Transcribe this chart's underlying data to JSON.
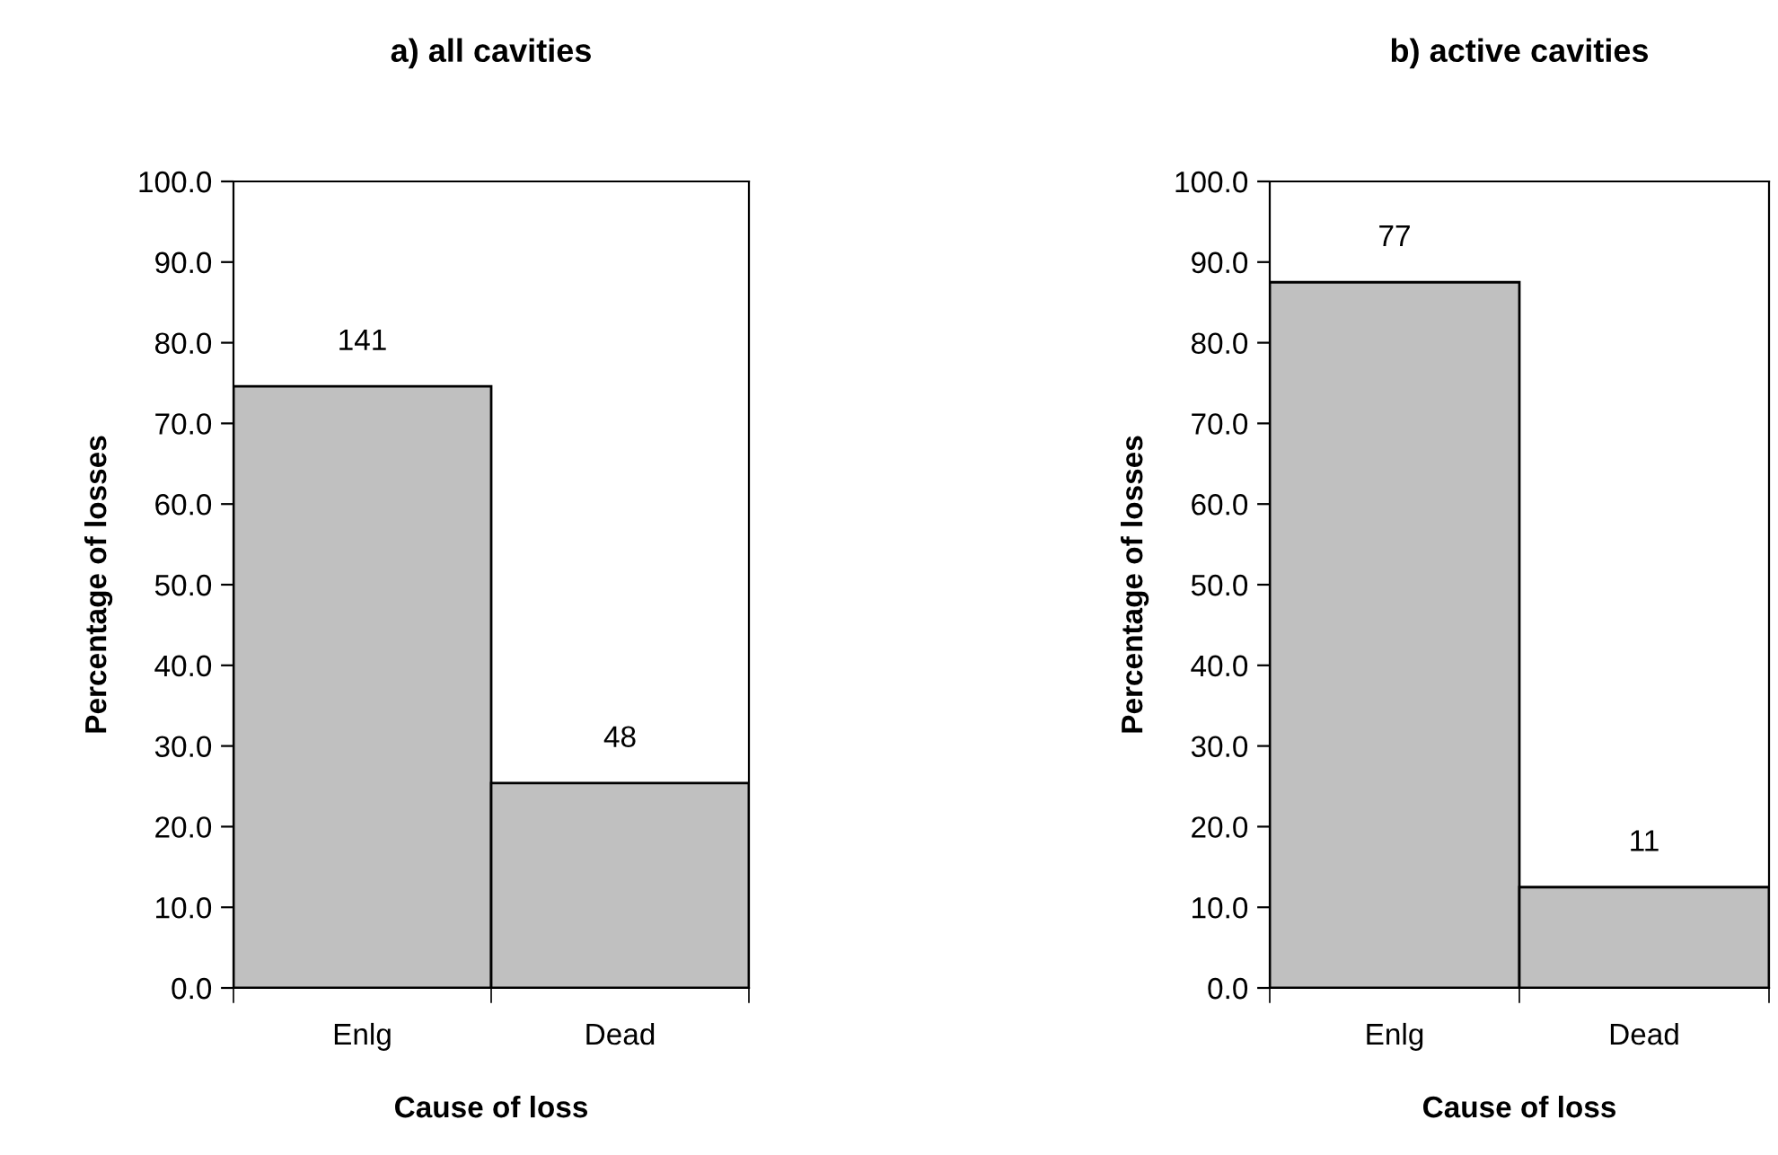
{
  "chart_data": [
    {
      "type": "bar",
      "title": "a) all cavities",
      "xlabel": "Cause of loss",
      "ylabel": "Percentage of losses",
      "categories": [
        "Enlg",
        "Dead"
      ],
      "values": [
        74.6,
        25.4
      ],
      "annotations": [
        {
          "text": "141",
          "x": "Enlg",
          "y": 74.6
        },
        {
          "text": "48",
          "x": "Dead",
          "y": 25.4
        }
      ],
      "color": "#c0c0c0",
      "ylim": [
        0,
        100
      ],
      "yticks": [
        {
          "value": 0,
          "label": "0.0"
        },
        {
          "value": 10,
          "label": "10.0"
        },
        {
          "value": 20,
          "label": "20.0"
        },
        {
          "value": 30,
          "label": "30.0"
        },
        {
          "value": 40,
          "label": "40.0"
        },
        {
          "value": 50,
          "label": "50.0"
        },
        {
          "value": 60,
          "label": "60.0"
        },
        {
          "value": 70,
          "label": "70.0"
        },
        {
          "value": 80,
          "label": "80.0"
        },
        {
          "value": 90,
          "label": "90.0"
        },
        {
          "value": 100,
          "label": "100.0"
        }
      ],
      "grid": false,
      "legend": false
    },
    {
      "type": "bar",
      "title": "b) active cavities",
      "xlabel": "Cause of loss",
      "ylabel": "Percentage of losses",
      "categories": [
        "Enlg",
        "Dead"
      ],
      "values": [
        87.5,
        12.5
      ],
      "annotations": [
        {
          "text": "77",
          "x": "Enlg",
          "y": 87.5
        },
        {
          "text": "11",
          "x": "Dead",
          "y": 12.5
        }
      ],
      "color": "#c0c0c0",
      "ylim": [
        0,
        100
      ],
      "yticks": [
        {
          "value": 0,
          "label": "0.0"
        },
        {
          "value": 10,
          "label": "10.0"
        },
        {
          "value": 20,
          "label": "20.0"
        },
        {
          "value": 30,
          "label": "30.0"
        },
        {
          "value": 40,
          "label": "40.0"
        },
        {
          "value": 50,
          "label": "50.0"
        },
        {
          "value": 60,
          "label": "60.0"
        },
        {
          "value": 70,
          "label": "70.0"
        },
        {
          "value": 80,
          "label": "80.0"
        },
        {
          "value": 90,
          "label": "90.0"
        },
        {
          "value": 100,
          "label": "100.0"
        }
      ],
      "grid": false,
      "legend": false
    }
  ]
}
